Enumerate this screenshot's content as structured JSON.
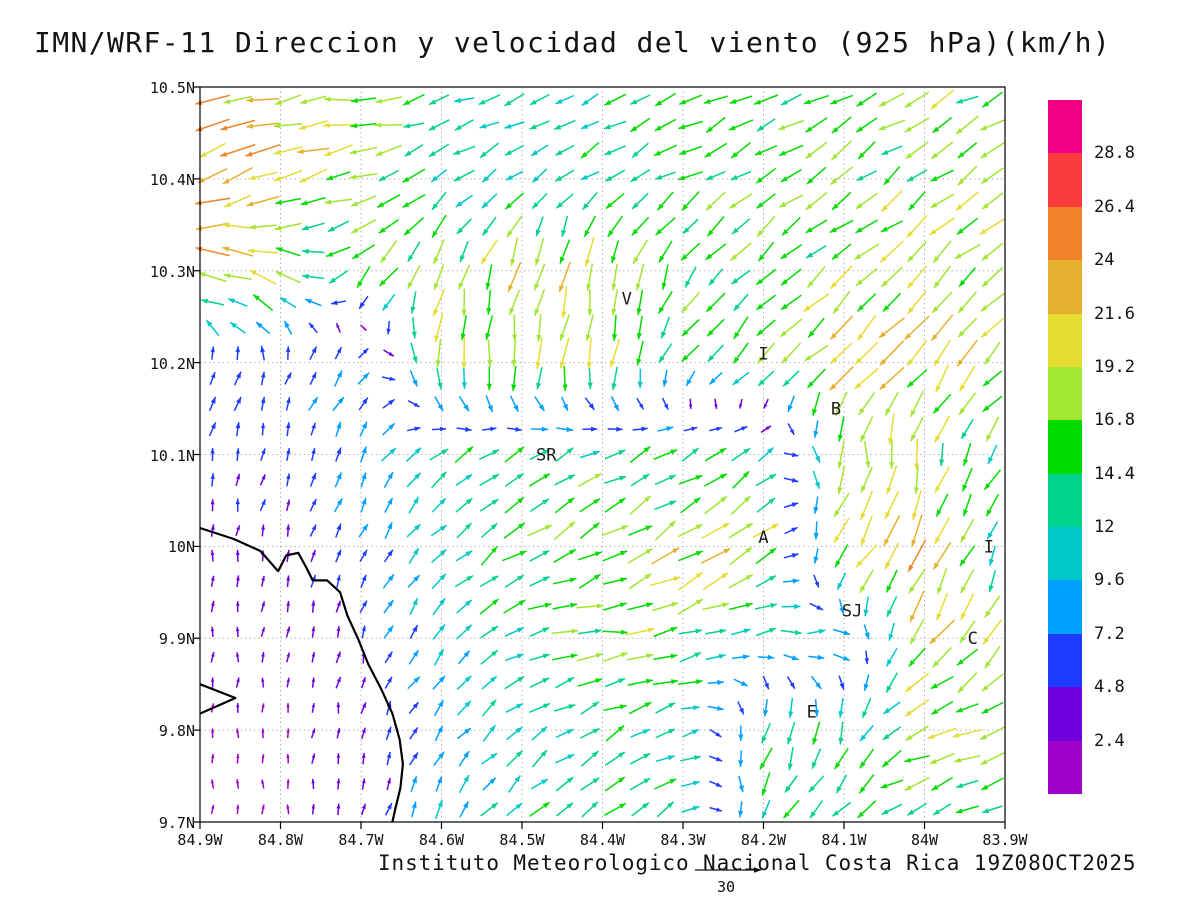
{
  "chart_data": {
    "type": "quiver",
    "title": "IMN/WRF-11 Direccion y velocidad del viento (925 hPa)(km/h)",
    "caption": "Instituto Meteorologico Nacional Costa Rica 19Z08OCT2025",
    "model": "IMN/WRF-11",
    "variable": "Direccion y velocidad del viento",
    "pressure_level": "925 hPa",
    "units": "km/h",
    "valid_time": "19Z08OCT2025",
    "grid": true,
    "legend_position": "right",
    "xlim": [
      84.9,
      83.9
    ],
    "ylim": [
      9.7,
      10.5
    ],
    "x_tick_values": [
      84.9,
      84.8,
      84.7,
      84.6,
      84.5,
      84.4,
      84.3,
      84.2,
      84.1,
      84.0,
      83.9
    ],
    "x_tick_labels": [
      "84.9W",
      "84.8W",
      "84.7W",
      "84.6W",
      "84.5W",
      "84.4W",
      "84.3W",
      "84.2W",
      "84.1W",
      "84W",
      "83.9W"
    ],
    "y_tick_values": [
      10.5,
      10.4,
      10.3,
      10.2,
      10.1,
      10.0,
      9.9,
      9.8,
      9.7
    ],
    "y_tick_labels": [
      "10.5N",
      "10.4N",
      "10.3N",
      "10.2N",
      "10.1N",
      "10N",
      "9.9N",
      "9.8N",
      "9.7N"
    ],
    "colorbar": {
      "levels": [
        2.4,
        4.8,
        7.2,
        9.6,
        12,
        14.4,
        16.8,
        19.2,
        21.6,
        24,
        26.4,
        28.8
      ],
      "labels_top_to_bottom": [
        "28.8",
        "26.4",
        "24",
        "21.6",
        "19.2",
        "16.8",
        "14.4",
        "12",
        "9.6",
        "7.2",
        "4.8",
        "2.4"
      ],
      "colors": [
        "#A000C8",
        "#6E00DC",
        "#1E3CFF",
        "#00A0FF",
        "#00C8C8",
        "#00D28C",
        "#00DC00",
        "#A0E632",
        "#E6DC32",
        "#E6AF2D",
        "#F08228",
        "#FA3C3C",
        "#F00082"
      ]
    },
    "reference_vector": {
      "label": "30",
      "value_kmh": 30
    },
    "stations": [
      {
        "label": "V",
        "lon": 84.37,
        "lat": 10.27
      },
      {
        "label": "I",
        "lon": 84.2,
        "lat": 10.21
      },
      {
        "label": "B",
        "lon": 84.11,
        "lat": 10.15
      },
      {
        "label": "SR",
        "lon": 84.47,
        "lat": 10.1
      },
      {
        "label": "A",
        "lon": 84.2,
        "lat": 10.01
      },
      {
        "label": "I",
        "lon": 83.92,
        "lat": 10.0
      },
      {
        "label": "SJ",
        "lon": 84.09,
        "lat": 9.93
      },
      {
        "label": "C",
        "lon": 83.94,
        "lat": 9.9
      },
      {
        "label": "E",
        "lon": 84.14,
        "lat": 9.82
      }
    ],
    "coastline": [
      [
        [
          84.9,
          10.02
        ],
        [
          84.858,
          10.008
        ],
        [
          84.825,
          9.995
        ],
        [
          84.803,
          9.973
        ],
        [
          84.793,
          9.99
        ],
        [
          84.778,
          9.993
        ],
        [
          84.768,
          9.977
        ],
        [
          84.76,
          9.963
        ],
        [
          84.742,
          9.963
        ],
        [
          84.726,
          9.95
        ],
        [
          84.717,
          9.925
        ],
        [
          84.703,
          9.898
        ],
        [
          84.691,
          9.872
        ],
        [
          84.675,
          9.845
        ],
        [
          84.661,
          9.818
        ],
        [
          84.652,
          9.79
        ],
        [
          84.648,
          9.763
        ],
        [
          84.651,
          9.737
        ],
        [
          84.658,
          9.712
        ],
        [
          84.661,
          9.7
        ]
      ],
      [
        [
          84.9,
          9.85
        ],
        [
          84.856,
          9.835
        ],
        [
          84.9,
          9.818
        ]
      ]
    ],
    "wind_grid": {
      "dir_convention": "dir_deg = direction arrows point, degrees counterclockwise from east; rows ordered north to south",
      "lons": [
        84.9,
        84.8,
        84.7,
        84.6,
        84.5,
        84.4,
        84.3,
        84.2,
        84.1,
        84.0,
        83.9
      ],
      "lats": [
        10.5,
        10.4,
        10.3,
        10.2,
        10.1,
        10.0,
        9.9,
        9.8,
        9.7
      ],
      "dir_deg": [
        [
          195,
          190,
          185,
          200,
          205,
          210,
          200,
          205,
          210,
          205,
          210
        ],
        [
          200,
          205,
          195,
          210,
          215,
          215,
          210,
          215,
          220,
          215,
          215
        ],
        [
          170,
          150,
          230,
          245,
          255,
          265,
          240,
          225,
          220,
          220,
          225
        ],
        [
          75,
          70,
          50,
          275,
          262,
          258,
          235,
          225,
          225,
          230,
          228
        ],
        [
          78,
          75,
          60,
          40,
          30,
          25,
          30,
          40,
          270,
          260,
          230
        ],
        [
          85,
          80,
          70,
          45,
          35,
          30,
          35,
          40,
          235,
          240,
          250
        ],
        [
          88,
          85,
          75,
          50,
          15,
          5,
          10,
          5,
          0,
          235,
          240
        ],
        [
          90,
          88,
          80,
          55,
          40,
          30,
          25,
          250,
          260,
          195,
          200
        ],
        [
          90,
          90,
          85,
          60,
          45,
          35,
          30,
          255,
          210,
          205,
          210
        ]
      ],
      "speed_kmh": [
        [
          22,
          21,
          17,
          13,
          12,
          13,
          14,
          15,
          16,
          17,
          17
        ],
        [
          24,
          23,
          18,
          13,
          12,
          13,
          14,
          15,
          16,
          16,
          16
        ],
        [
          24,
          20,
          15,
          17,
          19,
          20,
          16,
          15,
          18,
          19,
          18
        ],
        [
          7,
          6,
          10,
          19,
          19,
          18,
          14,
          16,
          21,
          21,
          18
        ],
        [
          6,
          5,
          8,
          12,
          14,
          14,
          14,
          13,
          19,
          18,
          14
        ],
        [
          4,
          4,
          7,
          12,
          16,
          18,
          20,
          21,
          23,
          22,
          12
        ],
        [
          3,
          3,
          5,
          10,
          14,
          17,
          16,
          12,
          10,
          22,
          18
        ],
        [
          2,
          2,
          4,
          9,
          12,
          13,
          13,
          14,
          15,
          18,
          17
        ],
        [
          2,
          2,
          4,
          10,
          13,
          14,
          14,
          13,
          15,
          14,
          12
        ]
      ]
    }
  }
}
